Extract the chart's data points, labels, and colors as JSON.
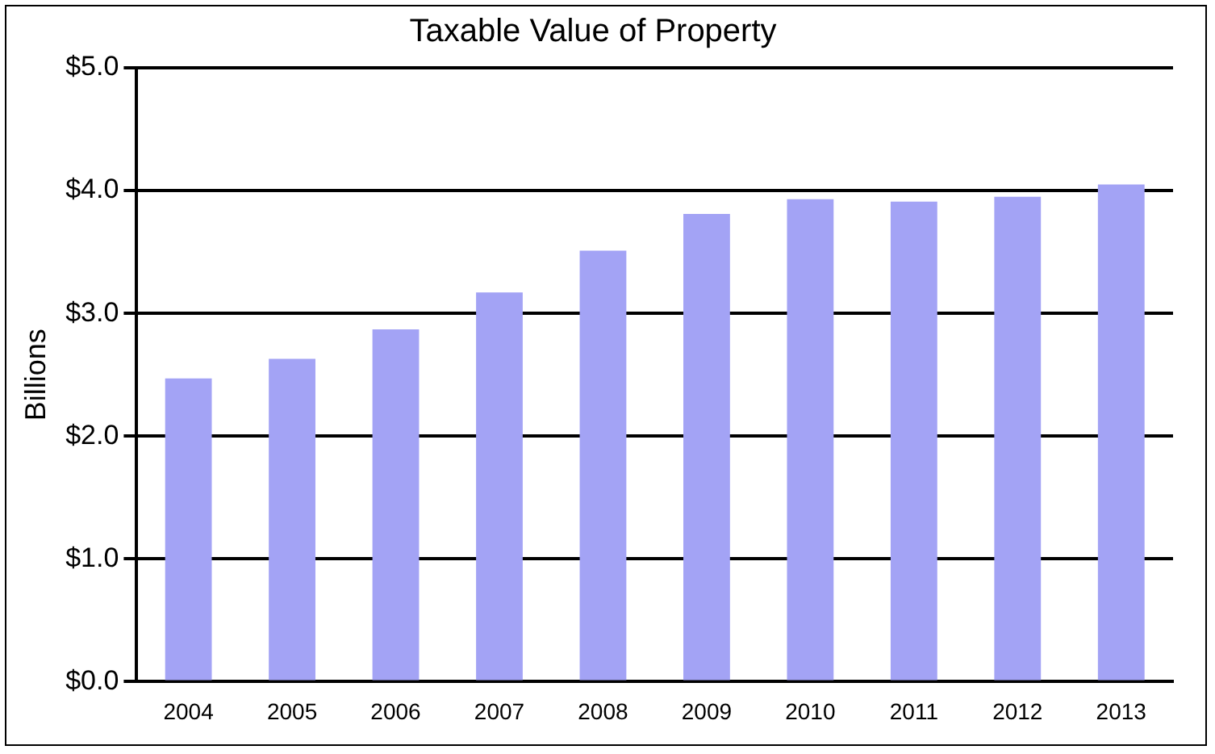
{
  "chart_data": {
    "type": "bar",
    "title": "Taxable Value of Property",
    "ylabel": "Billions",
    "categories": [
      "2004",
      "2005",
      "2006",
      "2007",
      "2008",
      "2009",
      "2010",
      "2011",
      "2012",
      "2013"
    ],
    "values": [
      2.47,
      2.63,
      2.87,
      3.17,
      3.51,
      3.81,
      3.93,
      3.91,
      3.95,
      4.05
    ],
    "color": "#a3a3f5",
    "ylim": [
      0,
      5
    ],
    "yticks": [
      {
        "value": 0,
        "label": "$0.0"
      },
      {
        "value": 1,
        "label": "$1.0"
      },
      {
        "value": 2,
        "label": "$2.0"
      },
      {
        "value": 3,
        "label": "$3.0"
      },
      {
        "value": 4,
        "label": "$4.0"
      },
      {
        "value": 5,
        "label": "$5.0"
      }
    ],
    "grid": "y"
  }
}
